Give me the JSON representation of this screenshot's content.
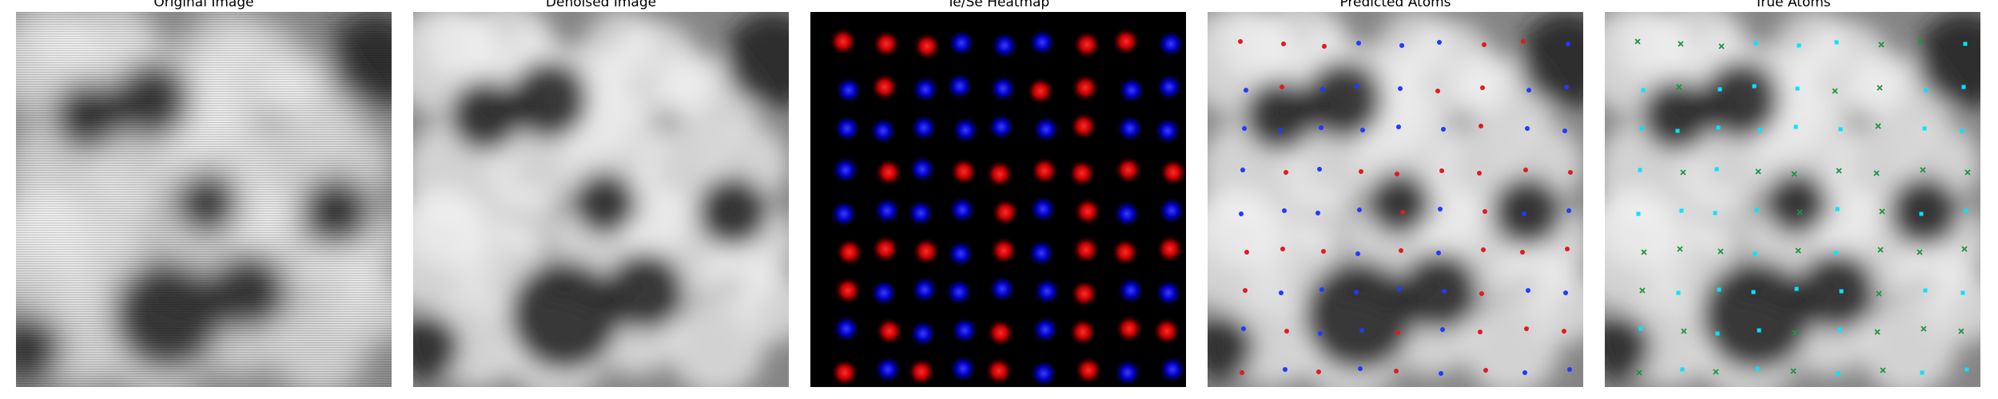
{
  "panels": [
    {
      "title": "Original Image"
    },
    {
      "title": "Denoised Image"
    },
    {
      "title": "Te/Se Heatmap"
    },
    {
      "title": "Predicted Atoms"
    },
    {
      "title": "True Atoms"
    }
  ],
  "colors": {
    "te": "#e31a1c",
    "se": "#1f3bff",
    "true_a": "#1a9641",
    "true_b": "#00e5ff",
    "heatmap_bg": "#000000"
  }
}
